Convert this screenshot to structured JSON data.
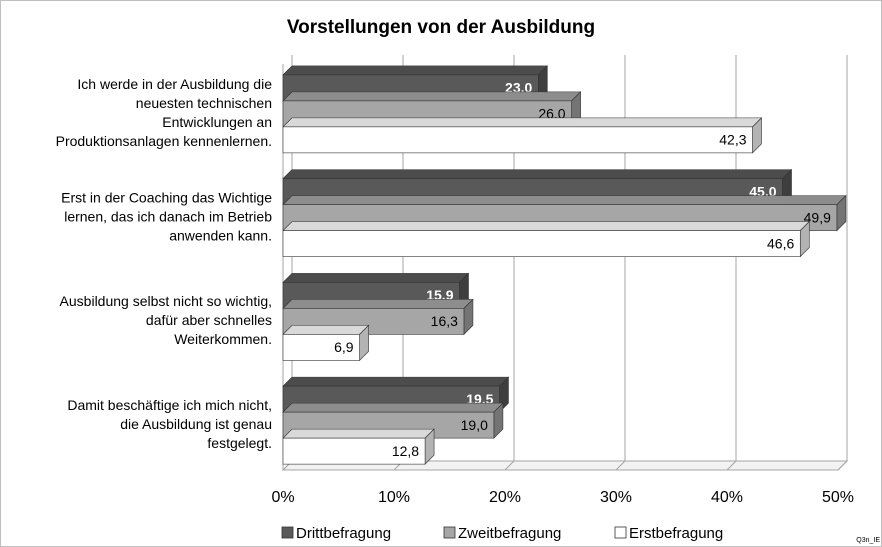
{
  "chart_data": {
    "type": "bar3d_horizontal",
    "title": "Vorstellungen von der Ausbildung",
    "categories": [
      [
        "Ich werde in der Ausbildung die",
        "neuesten technischen",
        "Entwicklungen an",
        "Produktionsanlagen kennenlernen."
      ],
      [
        "Erst in der Coaching das Wichtige",
        "lernen, das ich danach im Betrieb",
        "anwenden kann."
      ],
      [
        "Ausbildung selbst nicht so wichtig,",
        "dafür aber schnelles",
        "Weiterkommen."
      ],
      [
        "Damit beschäftige ich mich nicht,",
        "die Ausbildung ist genau",
        "festgelegt."
      ]
    ],
    "series": [
      {
        "name": "Drittbefragung",
        "color": "#595959",
        "values": [
          23.0,
          45.0,
          15.9,
          19.5
        ],
        "value_labels": [
          "23,0",
          "45,0",
          "15,9",
          "19,5"
        ]
      },
      {
        "name": "Zweitbefragung",
        "color": "#a6a6a6",
        "values": [
          26.0,
          49.9,
          16.3,
          19.0
        ],
        "value_labels": [
          "26,0",
          "49,9",
          "16,3",
          "19,0"
        ]
      },
      {
        "name": "Erstbefragung",
        "color": "#ffffff",
        "values": [
          42.3,
          46.6,
          6.9,
          12.8
        ],
        "value_labels": [
          "42,3",
          "46,6",
          "6,9",
          "12,8"
        ]
      }
    ],
    "xlim": [
      0,
      50
    ],
    "xticks": [
      {
        "value": 0,
        "label": "0%"
      },
      {
        "value": 10,
        "label": "10%"
      },
      {
        "value": 20,
        "label": "20%"
      },
      {
        "value": 30,
        "label": "30%"
      },
      {
        "value": 40,
        "label": "40%"
      },
      {
        "value": 50,
        "label": "50%"
      }
    ],
    "grid": true,
    "legend": "bottom",
    "footnote": "Q3n_IE"
  }
}
